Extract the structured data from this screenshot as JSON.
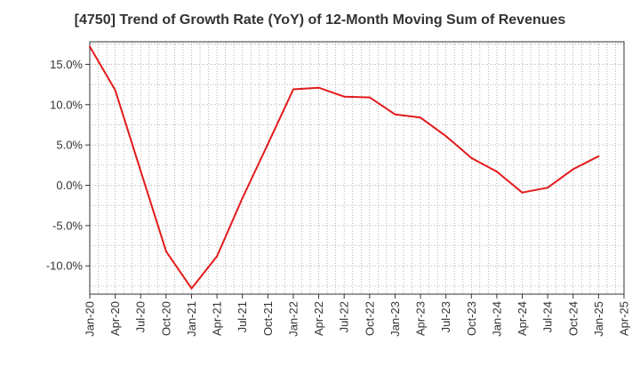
{
  "chart_data": {
    "type": "line",
    "title": "[4750]  Trend of Growth Rate (YoY) of 12-Month Moving Sum of Revenues",
    "xlabel": "",
    "ylabel": "",
    "x_ticks": [
      "Jan-20",
      "Apr-20",
      "Jul-20",
      "Oct-20",
      "Jan-21",
      "Apr-21",
      "Jul-21",
      "Oct-21",
      "Jan-22",
      "Apr-22",
      "Jul-22",
      "Oct-22",
      "Jan-23",
      "Apr-23",
      "Jul-23",
      "Oct-23",
      "Jan-24",
      "Apr-24",
      "Jul-24",
      "Oct-24",
      "Jan-25",
      "Apr-25"
    ],
    "y_ticks": [
      "15.0%",
      "10.0%",
      "5.0%",
      "0.0%",
      "-5.0%",
      "-10.0%"
    ],
    "y_tick_values": [
      15,
      10,
      5,
      0,
      -5,
      -10
    ],
    "ylim": [
      -13.5,
      17.8
    ],
    "grid": true,
    "series": [
      {
        "color": "#e31a1c",
        "x": [
          "Jan-20",
          "Apr-20",
          "Jul-20",
          "Oct-20",
          "Jan-21",
          "Apr-21",
          "Jul-21",
          "Oct-21",
          "Jan-22",
          "Apr-22",
          "Jul-22",
          "Oct-22",
          "Jan-23",
          "Apr-23",
          "Jul-23",
          "Oct-23",
          "Jan-24",
          "Apr-24",
          "Jul-24",
          "Oct-24",
          "Jan-25"
        ],
        "values": [
          17.2,
          11.8,
          1.8,
          -8.2,
          -12.8,
          -8.8,
          -1.6,
          5.1,
          11.9,
          12.1,
          11.0,
          10.9,
          8.8,
          8.4,
          6.1,
          3.4,
          1.7,
          -0.9,
          -0.3,
          2.0,
          3.6
        ]
      }
    ]
  }
}
